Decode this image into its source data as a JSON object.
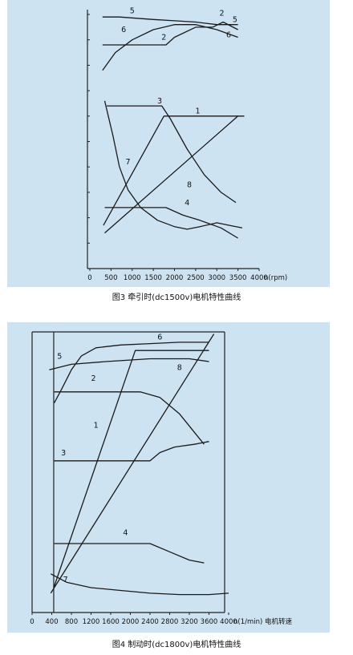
{
  "captions": {
    "fig1": "图3 牵引时(dc1500v)电机特性曲线",
    "fig2": "图4 制动时(dc1800v)电机特性曲线"
  },
  "colors": {
    "panel_bg": "#cde3f2",
    "axis": "#222222",
    "curve": "#1a1a1a",
    "text": "#111111"
  },
  "chart_data": [
    {
      "type": "line",
      "title": "",
      "xlabel": "n(rpm)",
      "ylabel": "",
      "xlim": [
        0,
        4000
      ],
      "ylim": [
        0,
        100
      ],
      "xticks": [
        0,
        500,
        1000,
        1500,
        2000,
        2500,
        3000,
        3500,
        4000
      ],
      "grid": false,
      "series": [
        {
          "name": "1",
          "points": [
            [
              320,
              17
            ],
            [
              1750,
              60
            ],
            [
              3650,
              60
            ]
          ]
        },
        {
          "name": "2",
          "points": [
            [
              300,
              88
            ],
            [
              1800,
              88
            ],
            [
              2000,
              91
            ],
            [
              2500,
              95
            ],
            [
              2900,
              95
            ],
            [
              3150,
              97
            ],
            [
              3500,
              94
            ]
          ]
        },
        {
          "name": "3",
          "points": [
            [
              400,
              64
            ],
            [
              1700,
              64
            ],
            [
              1900,
              59
            ],
            [
              2300,
              47
            ],
            [
              2700,
              37
            ],
            [
              3100,
              30
            ],
            [
              3450,
              26
            ]
          ]
        },
        {
          "name": "4",
          "points": [
            [
              350,
              24
            ],
            [
              1800,
              24
            ],
            [
              2200,
              21
            ],
            [
              2600,
              19
            ],
            [
              3100,
              16
            ],
            [
              3500,
              12
            ]
          ]
        },
        {
          "name": "5",
          "points": [
            [
              300,
              99
            ],
            [
              700,
              99
            ],
            [
              1500,
              98
            ],
            [
              2000,
              97.5
            ],
            [
              2500,
              97
            ],
            [
              3000,
              96
            ],
            [
              3500,
              96
            ]
          ]
        },
        {
          "name": "6",
          "points": [
            [
              300,
              78
            ],
            [
              600,
              85
            ],
            [
              1000,
              90
            ],
            [
              1500,
              94
            ],
            [
              2000,
              96
            ],
            [
              2500,
              96
            ],
            [
              3000,
              94
            ],
            [
              3500,
              91
            ]
          ]
        },
        {
          "name": "7",
          "points": [
            [
              350,
              66
            ],
            [
              550,
              52
            ],
            [
              700,
              40
            ],
            [
              900,
              31
            ],
            [
              1200,
              24
            ],
            [
              1600,
              19
            ],
            [
              2000,
              16.5
            ],
            [
              2300,
              15.5
            ],
            [
              2600,
              16.5
            ],
            [
              3000,
              18
            ],
            [
              3300,
              17
            ],
            [
              3600,
              16
            ]
          ]
        },
        {
          "name": "8",
          "points": [
            [
              350,
              14
            ],
            [
              3500,
              60
            ]
          ]
        }
      ],
      "labels": [
        {
          "text": "5",
          "x": 1000,
          "y": 100.5
        },
        {
          "text": "2",
          "x": 3120,
          "y": 99.5
        },
        {
          "text": "5",
          "x": 3430,
          "y": 97
        },
        {
          "text": "6",
          "x": 3280,
          "y": 91
        },
        {
          "text": "6",
          "x": 800,
          "y": 93
        },
        {
          "text": "2",
          "x": 1750,
          "y": 90
        },
        {
          "text": "3",
          "x": 1650,
          "y": 65
        },
        {
          "text": "1",
          "x": 2550,
          "y": 61
        },
        {
          "text": "7",
          "x": 900,
          "y": 41
        },
        {
          "text": "8",
          "x": 2350,
          "y": 32
        },
        {
          "text": "4",
          "x": 2300,
          "y": 25
        }
      ]
    },
    {
      "type": "line",
      "title": "",
      "xlabel": "n(1/min) 电机转速",
      "ylabel": "",
      "xlim": [
        0,
        4000
      ],
      "ylim": [
        0,
        100
      ],
      "xticks": [
        0,
        400,
        800,
        1200,
        1600,
        2000,
        2400,
        2800,
        3200,
        3600,
        4000
      ],
      "grid": false,
      "series": [
        {
          "name": "1",
          "points": [
            [
              440,
              9
            ],
            [
              2100,
              95
            ],
            [
              3600,
              95
            ]
          ]
        },
        {
          "name": "2",
          "points": [
            [
              450,
              80
            ],
            [
              2200,
              80
            ],
            [
              2600,
              78
            ],
            [
              3000,
              72
            ],
            [
              3500,
              61
            ]
          ]
        },
        {
          "name": "3",
          "points": [
            [
              450,
              55
            ],
            [
              2400,
              55
            ],
            [
              2600,
              58
            ],
            [
              2900,
              60
            ],
            [
              3300,
              61
            ],
            [
              3600,
              62
            ]
          ]
        },
        {
          "name": "4",
          "points": [
            [
              450,
              25
            ],
            [
              2400,
              25
            ],
            [
              2800,
              22
            ],
            [
              3200,
              19
            ],
            [
              3500,
              18
            ]
          ]
        },
        {
          "name": "5",
          "points": [
            [
              350,
              88
            ],
            [
              800,
              90
            ],
            [
              1500,
              91
            ],
            [
              2400,
              92
            ],
            [
              3200,
              92
            ],
            [
              3600,
              91
            ]
          ]
        },
        {
          "name": "6",
          "points": [
            [
              450,
              76
            ],
            [
              600,
              81
            ],
            [
              800,
              88
            ],
            [
              1000,
              93
            ],
            [
              1300,
              96
            ],
            [
              1800,
              97
            ],
            [
              2400,
              97.5
            ],
            [
              3000,
              98
            ],
            [
              3600,
              98
            ]
          ]
        },
        {
          "name": "7",
          "points": [
            [
              380,
              14
            ],
            [
              700,
              11
            ],
            [
              1200,
              9
            ],
            [
              1800,
              8
            ],
            [
              2400,
              7
            ],
            [
              3000,
              6.5
            ],
            [
              3600,
              6.5
            ],
            [
              4000,
              7
            ]
          ]
        },
        {
          "name": "8",
          "points": [
            [
              380,
              7
            ],
            [
              3700,
              101
            ]
          ]
        }
      ],
      "labels": [
        {
          "text": "6",
          "x": 2600,
          "y": 99
        },
        {
          "text": "5",
          "x": 560,
          "y": 92
        },
        {
          "text": "8",
          "x": 3000,
          "y": 88
        },
        {
          "text": "2",
          "x": 1250,
          "y": 84
        },
        {
          "text": "1",
          "x": 1300,
          "y": 67
        },
        {
          "text": "3",
          "x": 640,
          "y": 57
        },
        {
          "text": "4",
          "x": 1900,
          "y": 28
        },
        {
          "text": "7",
          "x": 680,
          "y": 11
        }
      ]
    }
  ]
}
